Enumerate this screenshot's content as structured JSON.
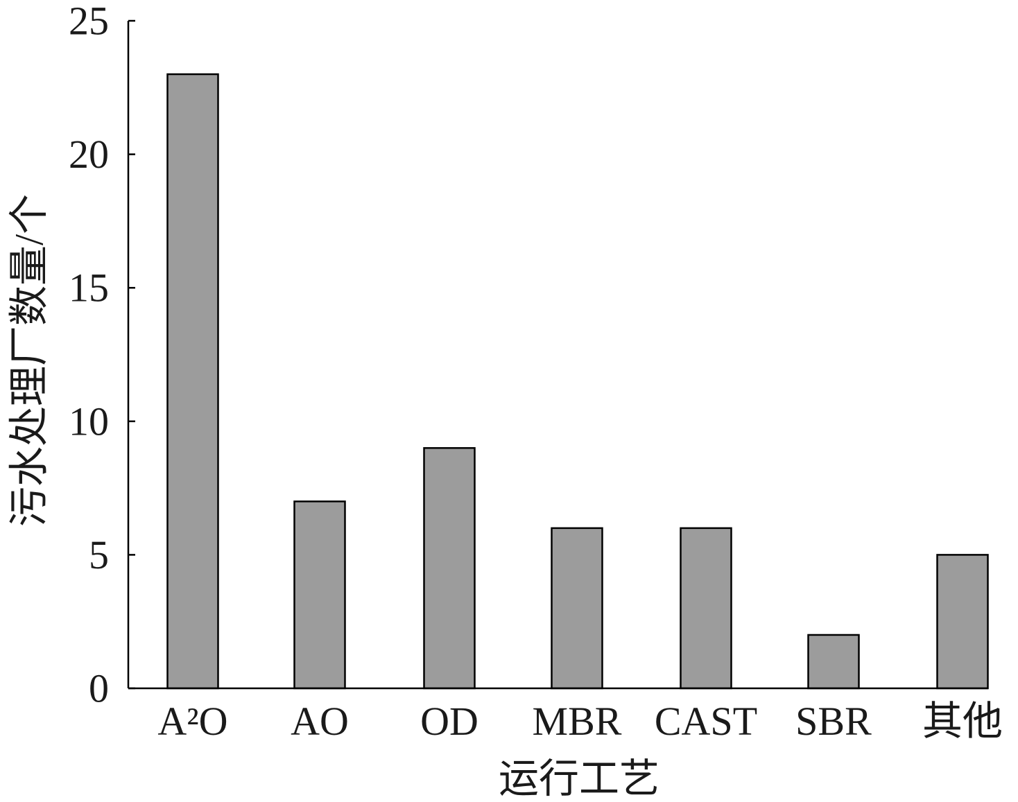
{
  "chart_data": {
    "type": "bar",
    "categories": [
      "A²O",
      "AO",
      "OD",
      "MBR",
      "CAST",
      "SBR",
      "其他"
    ],
    "values": [
      23,
      7,
      9,
      6,
      6,
      2,
      5
    ],
    "xlabel": "运行工艺",
    "ylabel": "污水处理厂数量/个",
    "ylim": [
      0,
      25
    ],
    "yticks": [
      0,
      5,
      10,
      15,
      20,
      25
    ],
    "grid": false,
    "colors": {
      "bar_fill": "#9c9c9c",
      "bar_stroke": "#000000",
      "axis": "#000000"
    }
  }
}
